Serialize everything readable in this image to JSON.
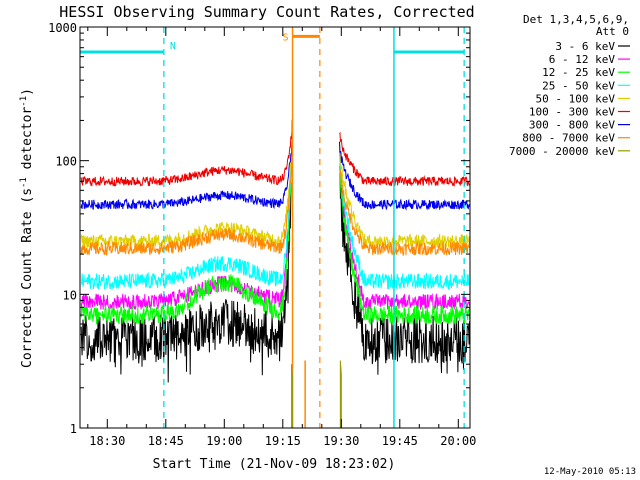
{
  "chart_data": {
    "type": "line",
    "title": "HESSI Observing Summary Count Rates, Corrected",
    "xlabel": "Start Time (21-Nov-09 18:23:02)",
    "ylabel_prefix": "Corrected Count Rate (s",
    "ylabel_sup1": "-1",
    "ylabel_mid": " detector",
    "ylabel_sup2": "-1",
    "ylabel_suffix": ")",
    "y_scale": "log",
    "ylim": [
      1,
      1000
    ],
    "xlim_minutes_after_1823": [
      0,
      100
    ],
    "y_ticks": [
      {
        "value": 1,
        "label": "1"
      },
      {
        "value": 10,
        "label": "10"
      },
      {
        "value": 100,
        "label": "100"
      },
      {
        "value": 1000,
        "label": "1000"
      }
    ],
    "x_ticks": [
      {
        "minute": 7,
        "label": "18:30"
      },
      {
        "minute": 22,
        "label": "18:45"
      },
      {
        "minute": 37,
        "label": "19:00"
      },
      {
        "minute": 52,
        "label": "19:15"
      },
      {
        "minute": 67,
        "label": "19:30"
      },
      {
        "minute": 82,
        "label": "19:45"
      },
      {
        "minute": 97,
        "label": "20:00"
      }
    ],
    "legend_header": [
      "Det 1,3,4,5,6,9,",
      "Att 0"
    ],
    "legend_position": "right",
    "series": [
      {
        "name": "3 - 6 keV",
        "color": "#000000",
        "base": 4.6,
        "bump": 1.6,
        "peak": 170,
        "noise": 0.18
      },
      {
        "name": "6 - 12 keV",
        "color": "#ff00ff",
        "base": 8.8,
        "bump": 3.2,
        "peak": 170,
        "noise": 0.06
      },
      {
        "name": "12 - 25 keV",
        "color": "#00ff00",
        "base": 7.0,
        "bump": 5.2,
        "peak": 170,
        "noise": 0.07
      },
      {
        "name": "25 - 50 keV",
        "color": "#00ffff",
        "base": 12.5,
        "bump": 4.6,
        "peak": 170,
        "noise": 0.06
      },
      {
        "name": "50 - 100 keV",
        "color": "#e0d000",
        "base": 25.0,
        "bump": 6.5,
        "peak": 170,
        "noise": 0.05
      },
      {
        "name": "100 - 300 keV",
        "color": "#ee0000",
        "base": 70.0,
        "bump": 15.0,
        "peak": 185,
        "noise": 0.035
      },
      {
        "name": "300 - 800 keV",
        "color": "#0000ee",
        "base": 47.0,
        "bump": 8.0,
        "peak": 150,
        "noise": 0.035
      },
      {
        "name": "800 - 7000 keV",
        "color": "#ff8800",
        "base": 22.0,
        "bump": 6.0,
        "peak": 120,
        "noise": 0.05
      },
      {
        "name": "7000 - 20000 keV",
        "color": "#999900",
        "base": 0,
        "bump": 0,
        "peak": 0,
        "noise": 0
      }
    ],
    "data_gap_minutes": [
      54.5,
      66.5
    ],
    "shapes_note": "each series: flat baseline with a broad hump peaking near 19:00, sharp rise into a data gap at ~19:17, decay after ~19:29",
    "annotations": {
      "night_label": "N",
      "saa_label": "S",
      "night_intervals_minutes": [
        [
          0,
          21.5
        ],
        [
          80.5,
          98.5
        ]
      ],
      "saa_interval_minutes": [
        54.5,
        58.5
      ],
      "night_color": "#00e0e0",
      "saa_color": "#ff8800",
      "saa_dash_minute": 61.5
    },
    "grid": false
  },
  "footer": {
    "timestamp": "12-May-2010 05:13"
  }
}
